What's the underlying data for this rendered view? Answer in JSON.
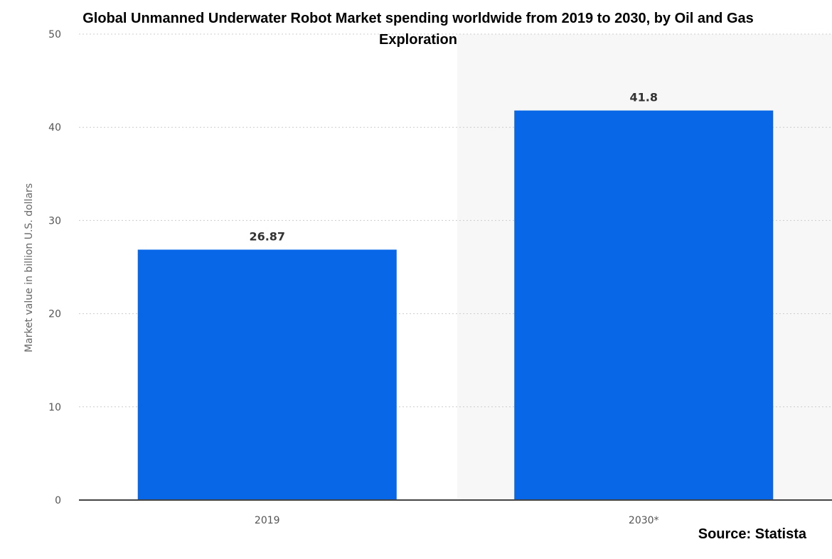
{
  "chart_data": {
    "type": "bar",
    "title_lines": [
      "Global Unmanned Underwater Robot Market spending worldwide from 2019 to 2030, by Oil and Gas",
      "Exploration"
    ],
    "categories": [
      "2019",
      "2030*"
    ],
    "values": [
      26.87,
      41.8
    ],
    "data_labels": [
      "26.87",
      "41.8"
    ],
    "ylabel": "Market value in billion U.S. dollars",
    "xlabel": "",
    "ylim": [
      0,
      50
    ],
    "yticks": [
      0,
      10,
      20,
      30,
      40,
      50
    ],
    "grid": true,
    "bar_color": "#0767e6",
    "forecast_band_color": "#f7f7f7",
    "source": "Source: Statista"
  }
}
